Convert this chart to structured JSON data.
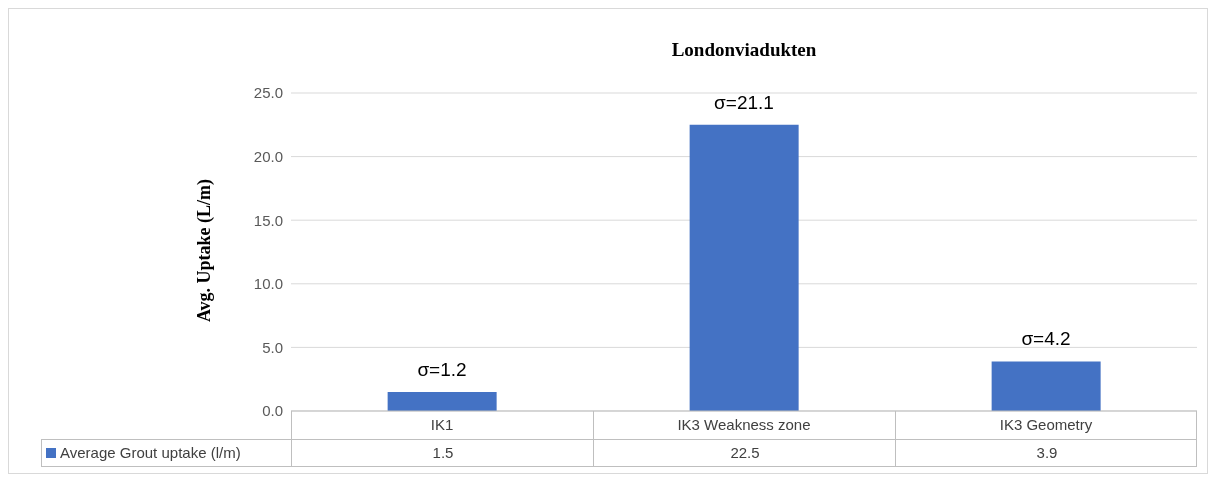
{
  "chart_data": {
    "type": "bar",
    "title": "Londonviadukten",
    "ylabel": "Avg. Uptake (L/m)",
    "categories": [
      "IK1",
      "IK3 Weakness zone",
      "IK3 Geometry"
    ],
    "series": [
      {
        "name": "Average Grout uptake (l/m)",
        "color": "#4472c4",
        "values": [
          1.5,
          22.5,
          3.9
        ]
      }
    ],
    "ylim": [
      0,
      25
    ],
    "yticks": [
      {
        "value": 0,
        "label": "0.0"
      },
      {
        "value": 5,
        "label": "5.0"
      },
      {
        "value": 10,
        "label": "10.0"
      },
      {
        "value": 15,
        "label": "15.0"
      },
      {
        "value": 20,
        "label": "20.0"
      },
      {
        "value": 25,
        "label": "25.0"
      }
    ],
    "grid": "y",
    "legend": "bottom",
    "data_labels": true,
    "annotations": [
      "σ=1.2",
      "σ=21.1",
      "σ=4.2"
    ]
  }
}
